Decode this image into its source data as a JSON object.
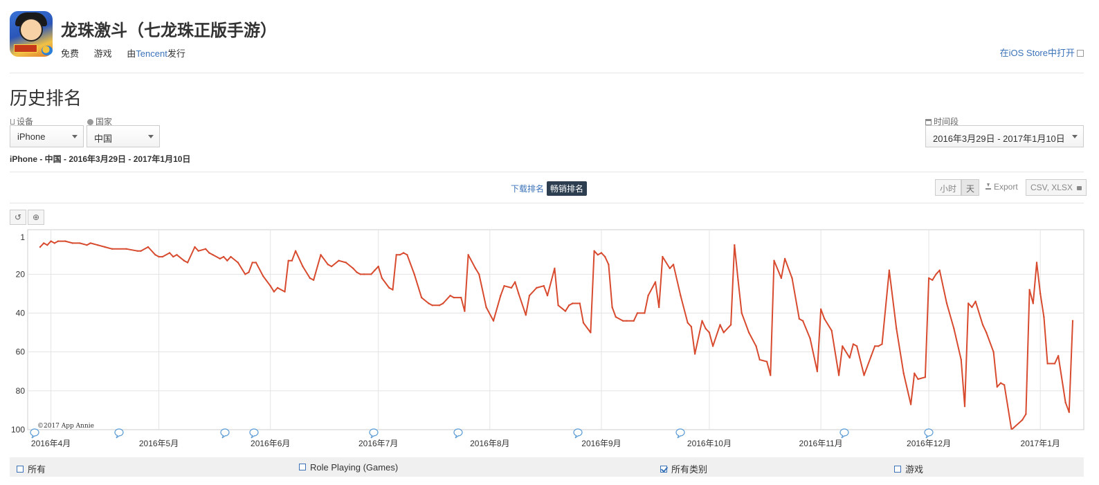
{
  "app": {
    "title": "龙珠激斗（七龙珠正版手游）",
    "price": "免费",
    "category": "游戏",
    "publisher_prefix": "由",
    "publisher": "Tencent",
    "publisher_suffix": "发行",
    "store_link": "在iOS Store中打开"
  },
  "section_title": "历史排名",
  "filters": {
    "device_label": "设备",
    "device_value": "iPhone",
    "country_label": "国家",
    "country_value": "中国",
    "period_label": "时间段",
    "period_value": "2016年3月29日 - 2017年1月10日"
  },
  "subheading": "iPhone - 中国 - 2016年3月29日 - 2017年1月10日",
  "tabs": {
    "downloads": "下载排名",
    "grossing": "畅销排名"
  },
  "controls": {
    "hour": "小时",
    "day": "天",
    "export": "Export",
    "format": "CSV, XLSX"
  },
  "legend": [
    {
      "label": "所有",
      "checked": false
    },
    {
      "label": "Role Playing (Games)",
      "checked": false
    },
    {
      "label": "所有类别",
      "checked": true
    },
    {
      "label": "游戏",
      "checked": false
    }
  ],
  "icons": {
    "device": "tablet-icon",
    "country": "globe-icon",
    "period": "calendar-icon",
    "reset": "undo-icon",
    "zoom": "zoom-icon",
    "export": "download-icon",
    "lock": "lock-icon"
  },
  "colors": {
    "series": "#d84a2e",
    "link": "#3a72b8",
    "active_tab": "#2c3e50"
  },
  "chart_data": {
    "type": "line",
    "x_axis": "date",
    "x_ticks": [
      "2016年4月",
      "2016年5月",
      "2016年6月",
      "2016年7月",
      "2016年8月",
      "2016年9月",
      "2016年10月",
      "2016年11月",
      "2016年12月",
      "2017年1月"
    ],
    "y_ticks": [
      1,
      20,
      40,
      60,
      80,
      100
    ],
    "ylim": [
      1,
      100
    ],
    "y_inverted": true,
    "grid": true,
    "copyright": "©2017 App Annie",
    "series": [
      {
        "values": [
          [
            "2016-03-29",
            6
          ],
          [
            "2016-03-30",
            4
          ],
          [
            "2016-03-31",
            5
          ],
          [
            "2016-04-01",
            3
          ],
          [
            "2016-04-02",
            4
          ],
          [
            "2016-04-03",
            3
          ],
          [
            "2016-04-05",
            3
          ],
          [
            "2016-04-07",
            4
          ],
          [
            "2016-04-09",
            4
          ],
          [
            "2016-04-11",
            5
          ],
          [
            "2016-04-12",
            4
          ],
          [
            "2016-04-14",
            5
          ],
          [
            "2016-04-16",
            6
          ],
          [
            "2016-04-18",
            7
          ],
          [
            "2016-04-22",
            7
          ],
          [
            "2016-04-25",
            8
          ],
          [
            "2016-04-26",
            8
          ],
          [
            "2016-04-28",
            6
          ],
          [
            "2016-04-30",
            10
          ],
          [
            "2016-05-01",
            11
          ],
          [
            "2016-05-02",
            11
          ],
          [
            "2016-05-04",
            9
          ],
          [
            "2016-05-05",
            11
          ],
          [
            "2016-05-06",
            10
          ],
          [
            "2016-05-08",
            13
          ],
          [
            "2016-05-09",
            14
          ],
          [
            "2016-05-11",
            6
          ],
          [
            "2016-05-12",
            8
          ],
          [
            "2016-05-14",
            7
          ],
          [
            "2016-05-15",
            9
          ],
          [
            "2016-05-16",
            10
          ],
          [
            "2016-05-18",
            12
          ],
          [
            "2016-05-19",
            11
          ],
          [
            "2016-05-20",
            13
          ],
          [
            "2016-05-21",
            11
          ],
          [
            "2016-05-23",
            14
          ],
          [
            "2016-05-25",
            20
          ],
          [
            "2016-05-26",
            19
          ],
          [
            "2016-05-27",
            14
          ],
          [
            "2016-05-28",
            14
          ],
          [
            "2016-05-30",
            21
          ],
          [
            "2016-06-01",
            26
          ],
          [
            "2016-06-02",
            29
          ],
          [
            "2016-06-03",
            27
          ],
          [
            "2016-06-05",
            29
          ],
          [
            "2016-06-06",
            13
          ],
          [
            "2016-06-07",
            13
          ],
          [
            "2016-06-08",
            8
          ],
          [
            "2016-06-10",
            16
          ],
          [
            "2016-06-12",
            22
          ],
          [
            "2016-06-13",
            23
          ],
          [
            "2016-06-15",
            10
          ],
          [
            "2016-06-17",
            15
          ],
          [
            "2016-06-18",
            16
          ],
          [
            "2016-06-20",
            13
          ],
          [
            "2016-06-22",
            14
          ],
          [
            "2016-06-24",
            17
          ],
          [
            "2016-06-25",
            19
          ],
          [
            "2016-06-26",
            20
          ],
          [
            "2016-06-27",
            20
          ],
          [
            "2016-06-29",
            20
          ],
          [
            "2016-06-30",
            18
          ],
          [
            "2016-07-01",
            16
          ],
          [
            "2016-07-02",
            22
          ],
          [
            "2016-07-04",
            27
          ],
          [
            "2016-07-05",
            28
          ],
          [
            "2016-07-06",
            10
          ],
          [
            "2016-07-07",
            10
          ],
          [
            "2016-07-08",
            9
          ],
          [
            "2016-07-09",
            10
          ],
          [
            "2016-07-11",
            20
          ],
          [
            "2016-07-13",
            32
          ],
          [
            "2016-07-15",
            35
          ],
          [
            "2016-07-16",
            36
          ],
          [
            "2016-07-18",
            36
          ],
          [
            "2016-07-19",
            35
          ],
          [
            "2016-07-21",
            31
          ],
          [
            "2016-07-22",
            32
          ],
          [
            "2016-07-24",
            32
          ],
          [
            "2016-07-25",
            39
          ],
          [
            "2016-07-26",
            10
          ],
          [
            "2016-07-28",
            17
          ],
          [
            "2016-07-29",
            20
          ],
          [
            "2016-07-31",
            37
          ],
          [
            "2016-08-02",
            44
          ],
          [
            "2016-08-04",
            31
          ],
          [
            "2016-08-05",
            26
          ],
          [
            "2016-08-07",
            27
          ],
          [
            "2016-08-08",
            24
          ],
          [
            "2016-08-09",
            30
          ],
          [
            "2016-08-11",
            41
          ],
          [
            "2016-08-12",
            31
          ],
          [
            "2016-08-14",
            27
          ],
          [
            "2016-08-16",
            26
          ],
          [
            "2016-08-17",
            31
          ],
          [
            "2016-08-19",
            17
          ],
          [
            "2016-08-20",
            36
          ],
          [
            "2016-08-22",
            39
          ],
          [
            "2016-08-23",
            36
          ],
          [
            "2016-08-24",
            35
          ],
          [
            "2016-08-26",
            35
          ],
          [
            "2016-08-27",
            45
          ],
          [
            "2016-08-29",
            50
          ],
          [
            "2016-08-30",
            8
          ],
          [
            "2016-08-31",
            10
          ],
          [
            "2016-09-01",
            9
          ],
          [
            "2016-09-02",
            11
          ],
          [
            "2016-09-03",
            15
          ],
          [
            "2016-09-04",
            37
          ],
          [
            "2016-09-05",
            42
          ],
          [
            "2016-09-07",
            44
          ],
          [
            "2016-09-08",
            44
          ],
          [
            "2016-09-10",
            44
          ],
          [
            "2016-09-11",
            40
          ],
          [
            "2016-09-13",
            40
          ],
          [
            "2016-09-14",
            31
          ],
          [
            "2016-09-16",
            24
          ],
          [
            "2016-09-17",
            37
          ],
          [
            "2016-09-18",
            11
          ],
          [
            "2016-09-20",
            17
          ],
          [
            "2016-09-21",
            15
          ],
          [
            "2016-09-23",
            31
          ],
          [
            "2016-09-25",
            45
          ],
          [
            "2016-09-26",
            47
          ],
          [
            "2016-09-27",
            61
          ],
          [
            "2016-09-29",
            44
          ],
          [
            "2016-09-30",
            48
          ],
          [
            "2016-10-01",
            50
          ],
          [
            "2016-10-02",
            57
          ],
          [
            "2016-10-04",
            46
          ],
          [
            "2016-10-05",
            50
          ],
          [
            "2016-10-07",
            46
          ],
          [
            "2016-10-08",
            5
          ],
          [
            "2016-10-09",
            23
          ],
          [
            "2016-10-10",
            40
          ],
          [
            "2016-10-12",
            50
          ],
          [
            "2016-10-14",
            57
          ],
          [
            "2016-10-15",
            64
          ],
          [
            "2016-10-17",
            65
          ],
          [
            "2016-10-18",
            72
          ],
          [
            "2016-10-19",
            13
          ],
          [
            "2016-10-21",
            22
          ],
          [
            "2016-10-22",
            12
          ],
          [
            "2016-10-24",
            22
          ],
          [
            "2016-10-26",
            43
          ],
          [
            "2016-10-27",
            44
          ],
          [
            "2016-10-29",
            53
          ],
          [
            "2016-10-31",
            70
          ],
          [
            "2016-11-01",
            38
          ],
          [
            "2016-11-02",
            43
          ],
          [
            "2016-11-04",
            49
          ],
          [
            "2016-11-06",
            72
          ],
          [
            "2016-11-07",
            57
          ],
          [
            "2016-11-09",
            63
          ],
          [
            "2016-11-10",
            56
          ],
          [
            "2016-11-11",
            57
          ],
          [
            "2016-11-13",
            72
          ],
          [
            "2016-11-15",
            62
          ],
          [
            "2016-11-16",
            57
          ],
          [
            "2016-11-17",
            57
          ],
          [
            "2016-11-18",
            56
          ],
          [
            "2016-11-20",
            18
          ],
          [
            "2016-11-22",
            48
          ],
          [
            "2016-11-24",
            71
          ],
          [
            "2016-11-26",
            87
          ],
          [
            "2016-11-27",
            71
          ],
          [
            "2016-11-28",
            74
          ],
          [
            "2016-11-30",
            73
          ],
          [
            "2016-12-01",
            22
          ],
          [
            "2016-12-02",
            23
          ],
          [
            "2016-12-03",
            20
          ],
          [
            "2016-12-04",
            18
          ],
          [
            "2016-12-06",
            35
          ],
          [
            "2016-12-08",
            48
          ],
          [
            "2016-12-10",
            64
          ],
          [
            "2016-12-11",
            88
          ],
          [
            "2016-12-12",
            35
          ],
          [
            "2016-12-13",
            37
          ],
          [
            "2016-12-14",
            34
          ],
          [
            "2016-12-16",
            46
          ],
          [
            "2016-12-17",
            50
          ],
          [
            "2016-12-19",
            60
          ],
          [
            "2016-12-20",
            78
          ],
          [
            "2016-12-21",
            76
          ],
          [
            "2016-12-22",
            77
          ],
          [
            "2016-12-24",
            100
          ],
          [
            "2016-12-27",
            95
          ],
          [
            "2016-12-28",
            92
          ],
          [
            "2016-12-29",
            28
          ],
          [
            "2016-12-30",
            35
          ],
          [
            "2016-12-31",
            14
          ],
          [
            "2017-01-01",
            30
          ],
          [
            "2017-01-02",
            42
          ],
          [
            "2017-01-03",
            66
          ],
          [
            "2017-01-05",
            66
          ],
          [
            "2017-01-06",
            62
          ],
          [
            "2017-01-08",
            86
          ],
          [
            "2017-01-09",
            91
          ],
          [
            "2017-01-10",
            44
          ]
        ]
      }
    ]
  }
}
